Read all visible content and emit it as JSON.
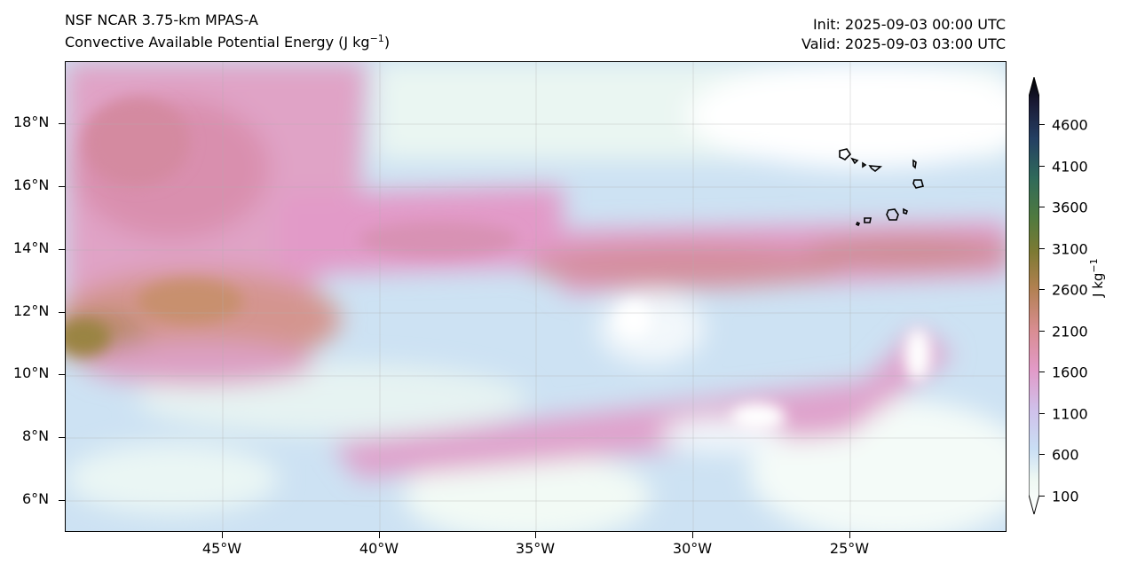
{
  "titles": {
    "model": "NSF NCAR 3.75-km MPAS-A",
    "field": "Convective Available Potential Energy (J kg",
    "field_exp": "−1",
    "field_close": ")",
    "init": "Init: 2025-09-03 00:00 UTC",
    "valid": "Valid: 2025-09-03 03:00 UTC"
  },
  "map": {
    "lat_ticks": [
      "18°N",
      "16°N",
      "14°N",
      "12°N",
      "10°N",
      "8°N",
      "6°N"
    ],
    "lon_ticks": [
      "45°W",
      "40°W",
      "35°W",
      "30°W",
      "25°W"
    ],
    "lon_range": [
      -50,
      -20
    ],
    "lat_range": [
      5,
      20
    ],
    "islands": "Cape Verde",
    "colormap": "cubehelix_r-like (white→blue→pink→brown→green→black)"
  },
  "colorbar": {
    "ticks": [
      "4600",
      "4100",
      "3600",
      "3100",
      "2600",
      "2100",
      "1600",
      "1100",
      "600",
      "100"
    ],
    "unit": "J kg",
    "unit_exp": "−1",
    "range": [
      100,
      4900
    ],
    "extend": "both"
  },
  "colors": {
    "low": "#ffffff",
    "c600": "#c9def4",
    "c1100": "#d7b8e8",
    "c1600": "#e29ac8",
    "c2100": "#d08a8a",
    "c2600": "#8f7a3a",
    "c3100": "#4f7a3f",
    "c3600": "#2f6a5a",
    "c4100": "#1f3a5a",
    "high": "#000000"
  }
}
